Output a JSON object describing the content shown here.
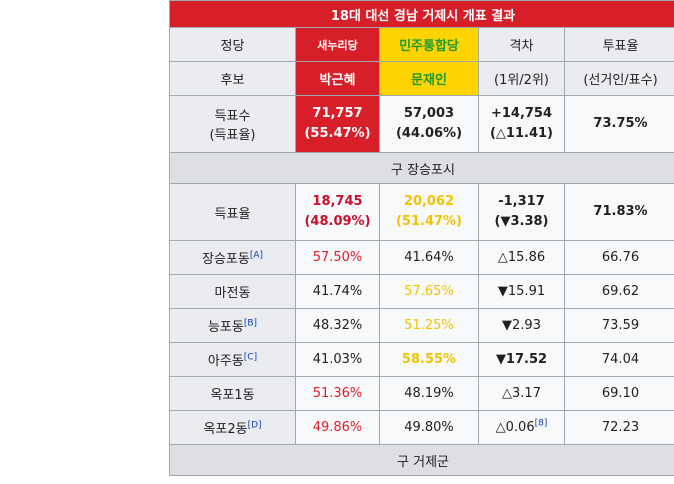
{
  "table": {
    "title": "18대 대선 경남 거제시 개표 결과",
    "header1": [
      "정당",
      "새누리당",
      "민주통합당",
      "격차",
      "투표율"
    ],
    "header2": [
      "후보",
      "박근혜",
      "문재인",
      "(1위/2위)",
      "(선거인/표수)"
    ],
    "total": {
      "label1": "득표수",
      "label2": "(득표율)",
      "park1": "71,757",
      "park2": "(55.47%)",
      "moon1": "57,003",
      "moon2": "(44.06%)",
      "gap1": "+14,754",
      "gap2": "(△11.41)",
      "turnout": "73.75%"
    },
    "section1": "구 장승포시",
    "sub": {
      "label": "득표율",
      "park1": "18,745",
      "park2": "(48.09%)",
      "moon1": "20,062",
      "moon2": "(51.47%)",
      "gap1": "-1,317",
      "gap2": "(▼3.38)",
      "turnout": "71.83%"
    },
    "rows": [
      {
        "name": "장승포동",
        "ref": "[A]",
        "park": "57.50%",
        "moon": "41.64%",
        "gap": "△15.86",
        "gap_ref": "",
        "turnout": "66.76"
      },
      {
        "name": "마전동",
        "ref": "",
        "park": "41.74%",
        "moon": "57.65%",
        "gap": "▼15.91",
        "gap_ref": "",
        "turnout": "69.62"
      },
      {
        "name": "능포동",
        "ref": "[B]",
        "park": "48.32%",
        "moon": "51.25%",
        "gap": "▼2.93",
        "gap_ref": "",
        "turnout": "73.59"
      },
      {
        "name": "아주동",
        "ref": "[C]",
        "park": "41.03%",
        "moon": "58.55%",
        "gap": "▼17.52",
        "gap_ref": "",
        "turnout": "74.04"
      },
      {
        "name": "옥포1동",
        "ref": "",
        "park": "51.36%",
        "moon": "48.19%",
        "gap": "△3.17",
        "gap_ref": "",
        "turnout": "69.10"
      },
      {
        "name": "옥포2동",
        "ref": "[D]",
        "park": "49.86%",
        "moon": "49.80%",
        "gap": "△0.06",
        "gap_ref": "[8]",
        "turnout": "72.23"
      }
    ],
    "section2": "구 거제군"
  },
  "colors": {
    "saenuri": "#d61f28",
    "minjoo": "#ffd400",
    "minjoo_text": "#1f9b30"
  }
}
